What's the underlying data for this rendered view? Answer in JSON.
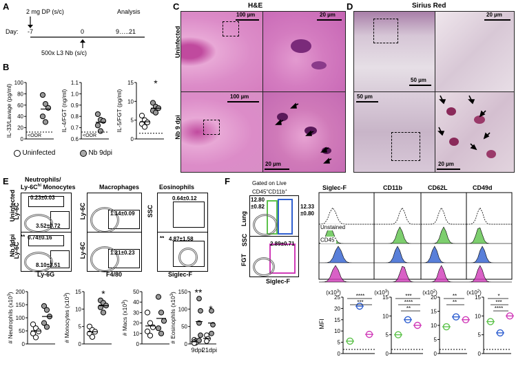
{
  "panel_labels": {
    "A": "A",
    "B": "B",
    "C": "C",
    "D": "D",
    "E": "E",
    "F": "F"
  },
  "panelA": {
    "dose": "2 mg DP (s/c)",
    "analysis": "Analysis",
    "day_label": "Day:",
    "day_m7": "-7",
    "day_0": "0",
    "day_end": "9…..21",
    "infection": "500x L3 Nb (s/c)"
  },
  "panelB": {
    "legend_uninfected": "Uninfected",
    "legend_nb": "Nb 9dpi",
    "oor": "<OOR",
    "star": "*",
    "chart_data": [
      {
        "type": "scatter",
        "ylabel": "IL-33/Lavage (pg/ml)",
        "yticks": [
          "0",
          "20",
          "40",
          "60",
          "80",
          "100"
        ],
        "ylim": [
          0,
          100
        ],
        "series": [
          {
            "name": "Uninfected",
            "values": []
          },
          {
            "name": "Nb 9dpi",
            "values": [
              78,
              62,
              55,
              40,
              30
            ]
          }
        ]
      },
      {
        "type": "scatter",
        "ylabel": "IL-4/FGT (ng/ml)",
        "yticks": [
          "0.6",
          "0.7",
          "0.8",
          "0.9",
          "1.0",
          "1.1"
        ],
        "ylim": [
          0.6,
          1.1
        ],
        "series": [
          {
            "name": "Uninfected",
            "values": []
          },
          {
            "name": "Nb 9dpi",
            "values": [
              0.82,
              0.77,
              0.76,
              0.72,
              0.67
            ]
          }
        ]
      },
      {
        "type": "scatter",
        "ylabel": "IL-5/FGT (pg/ml)",
        "yticks": [
          "0",
          "5",
          "10",
          "15"
        ],
        "ylim": [
          0,
          15
        ],
        "series": [
          {
            "name": "Uninfected",
            "values": [
              6.2,
              5.0,
              4.4,
              4.0,
              3.2
            ]
          },
          {
            "name": "Nb 9dpi",
            "values": [
              9.6,
              8.6,
              8.2,
              7.5,
              7.0
            ]
          }
        ]
      }
    ]
  },
  "panelC": {
    "title": "H&E",
    "row1": "Uninfected",
    "row2": "Nb 9 dpi",
    "sb_100a": "100 µm",
    "sb_20a": "20 µm",
    "sb_100b": "100 µm",
    "sb_20b": "20 µm"
  },
  "panelD": {
    "title": "Sirius Red",
    "sb_20a": "20 µm",
    "sb_50a": "50 µm",
    "sb_50b": "50 µm",
    "sb_20b": "20 µm"
  },
  "panelE": {
    "header_neut": "Neutrophils/",
    "header_mono": "Ly-6C",
    "header_mono_sup": "hi",
    "header_mono_tail": " Monocytes",
    "header_mac": "Macrophages",
    "header_eos": "Eosinophils",
    "row1": "Uninfected",
    "row2": "Nb 9dpi",
    "ax_ly6c": "Ly-6C",
    "ax_ly6g": "Ly-6G",
    "ax_f480": "F4/80",
    "ax_ssc": "SSC",
    "ax_siglec": "Siglec-F",
    "g_u_neut_top": "0.23±0.03",
    "g_u_neut_bot": "3.52±0.72",
    "g_u_mac": "1.14±0.09",
    "g_u_eos": "0.64±0.12",
    "g_n_neut_top": "0.74±0.16",
    "g_n_neut_bot": "8.10±3.51",
    "g_n_mac": "1.21±0.23",
    "g_n_eos": "4.87±1.58",
    "stars_neut": "**",
    "stars_eos": "**",
    "chart_data": [
      {
        "type": "scatter",
        "ylabel": "# Neutrophils (x10",
        "ylabel_sup": "3",
        "ylabel_close": ")",
        "yticks": [
          "0",
          "50",
          "100",
          "150",
          "200"
        ],
        "ylim": [
          0,
          200
        ],
        "series": [
          {
            "name": "Uninfected",
            "values": [
              75,
              60,
              48,
              40,
              25
            ]
          },
          {
            "name": "Nb 9dpi",
            "values": [
              145,
              130,
              105,
              80,
              65
            ]
          }
        ]
      },
      {
        "type": "scatter",
        "ylabel": "# Monocytes (x10",
        "ylabel_sup": "3",
        "ylabel_close": ")",
        "yticks": [
          "0",
          "5",
          "10",
          "15"
        ],
        "ylim": [
          0,
          15
        ],
        "series": [
          {
            "name": "Uninfected",
            "values": [
              5.0,
              4.0,
              3.5,
              3.0,
              2.0
            ]
          },
          {
            "name": "Nb 9dpi",
            "values": [
              12.5,
              11.8,
              11.0,
              10.5,
              9.0
            ]
          }
        ],
        "star": "*"
      },
      {
        "type": "scatter",
        "ylabel": "# Macs (x10",
        "ylabel_sup": "3",
        "ylabel_close": ")",
        "yticks": [
          "0",
          "10",
          "20",
          "30",
          "40",
          "50"
        ],
        "ylim": [
          0,
          50
        ],
        "series": [
          {
            "name": "Uninfected",
            "values": [
              30,
              20,
              16,
              12,
              8
            ]
          },
          {
            "name": "Nb 9dpi",
            "values": [
              45,
              30,
              22,
              15,
              10
            ]
          }
        ]
      },
      {
        "type": "scatter",
        "ylabel": "# Eosinophils (x10",
        "ylabel_sup": "3",
        "ylabel_close": ")",
        "yticks": [
          "0",
          "50",
          "100",
          "150"
        ],
        "ylim": [
          0,
          150
        ],
        "categories": [
          "9dpi",
          "21dpi"
        ],
        "series": [
          {
            "name": "Uninfected",
            "values": [
              [
                12,
                8,
                6,
                3,
                2
              ],
              [
                25,
                15,
                8
              ]
            ]
          },
          {
            "name": "Nb 9dpi",
            "values": [
              [
                130,
                95,
                60,
                25,
                10
              ],
              [
                95,
                55,
                30
              ]
            ]
          }
        ],
        "stars": [
          "**",
          "*"
        ]
      }
    ]
  },
  "panelF": {
    "gated_line1": "Gated on Live",
    "gated_line2": "CD45",
    "gated_line2_sup": "+",
    "gated_line2_b": "CD11b",
    "gated_line2_sup2": "+",
    "row_lung": "Lung",
    "row_fgt": "FGT",
    "ax_ssc": "SSC",
    "ax_siglec": "Siglec-F",
    "g_lung_left": "12.80\n±0.82",
    "g_lung_left_a": "12.80",
    "g_lung_left_b": "±0.82",
    "g_lung_right_a": "12.33",
    "g_lung_right_b": "±0.80",
    "g_fgt": "2.89±0.71",
    "hist_headers": [
      "Siglec-F",
      "CD11b",
      "CD62L",
      "CD49d"
    ],
    "lab_unstained": "Unstained",
    "lab_cd45": "CD45",
    "lab_cd45_sup": "+",
    "mfi_label": "MFI",
    "colors": {
      "green": "#5cc24a",
      "blue": "#2f5fd0",
      "magenta": "#d03ab8"
    },
    "chart_data": [
      {
        "type": "scatter",
        "scale": "(x10",
        "scale_sup": "3",
        "scale_close": ")",
        "yticks": [
          "0",
          "5",
          "10",
          "15",
          "20",
          "25"
        ],
        "ylim": [
          0,
          25
        ],
        "series": [
          {
            "name": "green",
            "values": [
              5.5
            ]
          },
          {
            "name": "blue",
            "values": [
              21
            ]
          },
          {
            "name": "magenta",
            "values": [
              8.5
            ]
          }
        ],
        "stars": [
          "****",
          "***"
        ]
      },
      {
        "type": "scatter",
        "scale": "(x10",
        "scale_sup": "3",
        "scale_close": ")",
        "yticks": [
          "0",
          "5",
          "10",
          "15"
        ],
        "ylim": [
          0,
          15
        ],
        "series": [
          {
            "name": "green",
            "values": [
              5
            ]
          },
          {
            "name": "blue",
            "values": [
              9
            ]
          },
          {
            "name": "magenta",
            "values": [
              7.5
            ]
          }
        ],
        "stars": [
          "***",
          "****",
          "**"
        ]
      },
      {
        "type": "scatter",
        "scale": "(x10",
        "scale_sup": "2",
        "scale_close": ")",
        "yticks": [
          "0",
          "5",
          "10",
          "15",
          "20"
        ],
        "ylim": [
          0,
          20
        ],
        "series": [
          {
            "name": "green",
            "values": [
              9.5
            ]
          },
          {
            "name": "blue",
            "values": [
              13
            ]
          },
          {
            "name": "magenta",
            "values": [
              12
            ]
          }
        ],
        "stars": [
          "**",
          "**"
        ]
      },
      {
        "type": "scatter",
        "scale": "(x10",
        "scale_sup": "2",
        "scale_close": ")",
        "yticks": [
          "0",
          "5",
          "10",
          "15"
        ],
        "ylim": [
          0,
          15
        ],
        "series": [
          {
            "name": "green",
            "values": [
              8.5
            ]
          },
          {
            "name": "blue",
            "values": [
              5.5
            ]
          },
          {
            "name": "magenta",
            "values": [
              10
            ]
          }
        ],
        "stars": [
          "*",
          "***",
          "****"
        ]
      }
    ]
  }
}
